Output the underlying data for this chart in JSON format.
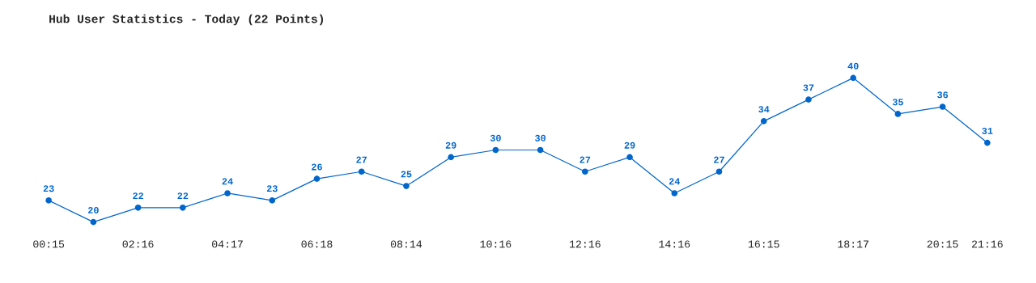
{
  "chart_data": {
    "type": "line",
    "title": "Hub User Statistics - Today (22 Points)",
    "categories": [
      "00:15",
      null,
      "02:16",
      null,
      "04:17",
      null,
      "06:18",
      null,
      "08:14",
      null,
      "10:16",
      null,
      "12:16",
      null,
      "14:16",
      null,
      "16:15",
      null,
      "18:17",
      null,
      "20:15",
      "21:16"
    ],
    "series": [
      {
        "color": "#0066cc",
        "values": [
          23,
          20,
          22,
          22,
          24,
          23,
          26,
          27,
          25,
          29,
          30,
          30,
          27,
          29,
          24,
          27,
          34,
          37,
          40,
          35,
          36,
          31
        ]
      }
    ],
    "data_labels": true,
    "marker": "circle",
    "line_style": "solid",
    "grid": false,
    "legend": false,
    "tick_labels": "x"
  }
}
